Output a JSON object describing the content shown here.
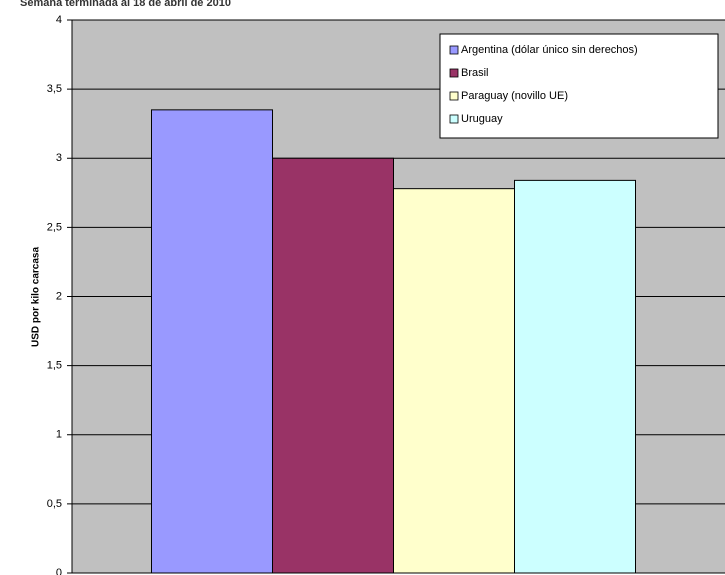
{
  "chart_data": {
    "type": "bar",
    "title": "Semana terminada al 18 de abril de 2010",
    "y_label": "USD por kilo carcasa",
    "series": [
      {
        "name": "Argentina (dólar único sin derechos)",
        "color": "#9999ff",
        "values": [
          3.35
        ]
      },
      {
        "name": "Brasil",
        "color": "#993366",
        "values": [
          3.0
        ]
      },
      {
        "name": "Paraguay (novillo UE)",
        "color": "#ffffcc",
        "values": [
          2.78
        ]
      },
      {
        "name": "Uruguay",
        "color": "#ccffff",
        "values": [
          2.84
        ]
      }
    ],
    "ylim": [
      0,
      4
    ],
    "yticks": [
      0,
      {
        "value": 0.5,
        "label": "0,5"
      },
      1,
      {
        "value": 1.5,
        "label": "1,5"
      },
      2,
      {
        "value": 2.5,
        "label": "2,5"
      },
      3,
      {
        "value": 3.5,
        "label": "3,5"
      },
      4
    ],
    "grid": true,
    "plot_background": "#c0c0c0",
    "legend_position": "top-right"
  }
}
